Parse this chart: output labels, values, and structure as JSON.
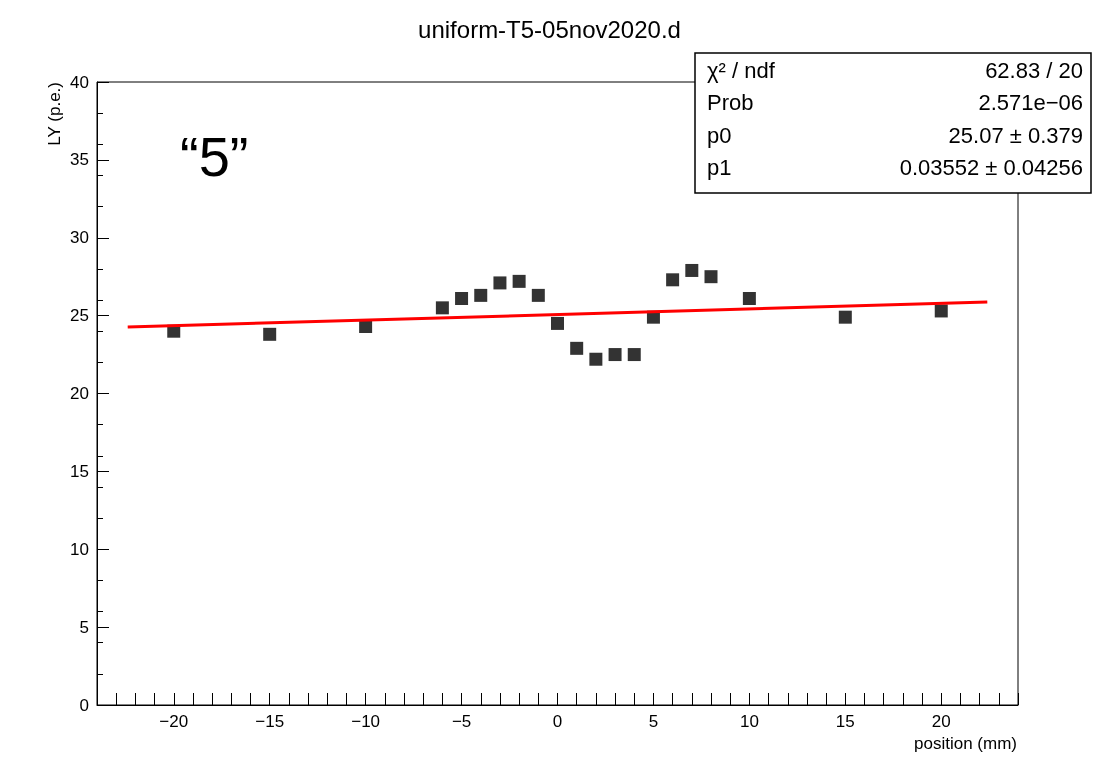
{
  "chart_data": {
    "type": "scatter",
    "title": "uniform-T5-05nov2020.d",
    "xlabel": "position (mm)",
    "ylabel": "LY (p.e.)",
    "xlim": [
      -24,
      24
    ],
    "xticks": [
      {
        "value": -24,
        "label": null
      },
      {
        "value": -23,
        "label": null
      },
      {
        "value": -22,
        "label": null
      },
      {
        "value": -21,
        "label": null
      },
      -20,
      {
        "value": -19,
        "label": null
      },
      {
        "value": -18,
        "label": null
      },
      {
        "value": -17,
        "label": null
      },
      {
        "value": -16,
        "label": null
      },
      -15,
      {
        "value": -14,
        "label": null
      },
      {
        "value": -13,
        "label": null
      },
      {
        "value": -12,
        "label": null
      },
      {
        "value": -11,
        "label": null
      },
      -10,
      {
        "value": -9,
        "label": null
      },
      {
        "value": -8,
        "label": null
      },
      {
        "value": -7,
        "label": null
      },
      {
        "value": -6,
        "label": null
      },
      -5,
      {
        "value": -4,
        "label": null
      },
      {
        "value": -3,
        "label": null
      },
      {
        "value": -2,
        "label": null
      },
      {
        "value": -1,
        "label": null
      },
      0,
      {
        "value": 1,
        "label": null
      },
      {
        "value": 2,
        "label": null
      },
      {
        "value": 3,
        "label": null
      },
      {
        "value": 4,
        "label": null
      },
      5,
      {
        "value": 6,
        "label": null
      },
      {
        "value": 7,
        "label": null
      },
      {
        "value": 8,
        "label": null
      },
      {
        "value": 9,
        "label": null
      },
      10,
      {
        "value": 11,
        "label": null
      },
      {
        "value": 12,
        "label": null
      },
      {
        "value": 13,
        "label": null
      },
      {
        "value": 14,
        "label": null
      },
      15,
      {
        "value": 16,
        "label": null
      },
      {
        "value": 17,
        "label": null
      },
      {
        "value": 18,
        "label": null
      },
      {
        "value": 19,
        "label": null
      },
      20,
      {
        "value": 21,
        "label": null
      },
      {
        "value": 22,
        "label": null
      },
      {
        "value": 23,
        "label": null
      },
      {
        "value": 24,
        "label": null
      }
    ],
    "ylim": [
      0,
      40
    ],
    "yticks": [
      0,
      5,
      10,
      15,
      20,
      25,
      30,
      35,
      40
    ],
    "marker": "square",
    "grid": false,
    "series": [
      {
        "color": "#000000",
        "x": [
          -20,
          -15,
          -10,
          -6,
          -5,
          -4,
          -3,
          -2,
          -1,
          0,
          1,
          2,
          3,
          4,
          5,
          6,
          7,
          8,
          10,
          15,
          20
        ],
        "values": [
          24.0,
          23.8,
          24.3,
          25.5,
          26.1,
          26.3,
          27.1,
          27.2,
          26.3,
          24.5,
          22.9,
          22.2,
          22.5,
          22.5,
          24.9,
          27.3,
          27.9,
          27.5,
          26.1,
          24.9,
          25.3
        ]
      },
      {
        "type": "line",
        "color": "#ff0000",
        "marker": "none",
        "x": [
          -22.4,
          22.4
        ],
        "values": [
          24.27,
          25.87
        ]
      }
    ],
    "annotations": [
      "“5”",
      "χ² / ndf",
      "62.83 / 20",
      "Prob",
      "2.571e−06",
      "p0",
      "25.07 ± 0.379",
      "p1",
      "0.03552 ± 0.04256"
    ]
  }
}
